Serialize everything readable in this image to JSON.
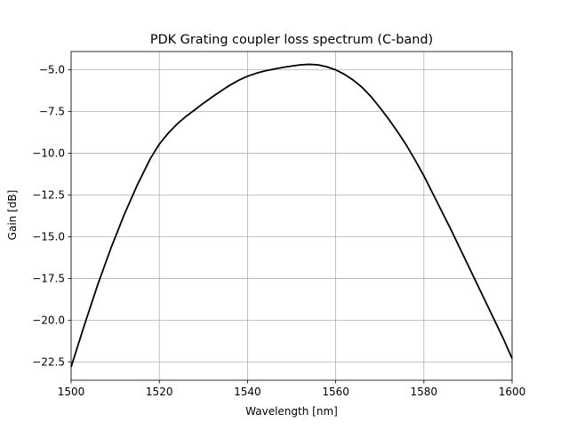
{
  "chart_data": {
    "type": "line",
    "title": "PDK Grating coupler loss spectrum (C-band)",
    "xlabel": "Wavelength [nm]",
    "ylabel": "Gain [dB]",
    "xlim": [
      1500,
      1600
    ],
    "ylim": [
      -23.6,
      -3.9
    ],
    "grid": true,
    "line_color": "#000000",
    "grid_color": "#b0b0b0",
    "xticks": [
      1500,
      1520,
      1540,
      1560,
      1580,
      1600
    ],
    "xtick_labels": [
      "1500",
      "1520",
      "1540",
      "1560",
      "1580",
      "1600"
    ],
    "yticks": [
      -22.5,
      -20.0,
      -17.5,
      -15.0,
      -12.5,
      -10.0,
      -7.5,
      -5.0
    ],
    "ytick_labels": [
      "−22.5",
      "−20.0",
      "−17.5",
      "−15.0",
      "−12.5",
      "−10.0",
      "−7.5",
      "−5.0"
    ],
    "series": [
      {
        "x": [
          1500,
          1503,
          1506,
          1509,
          1512,
          1515,
          1518,
          1520,
          1522,
          1524,
          1526,
          1528,
          1530,
          1532,
          1534,
          1536,
          1538,
          1540,
          1542,
          1544,
          1546,
          1548,
          1550,
          1552,
          1554,
          1556,
          1558,
          1560,
          1562,
          1564,
          1566,
          1568,
          1570,
          1572,
          1574,
          1576,
          1578,
          1580,
          1582,
          1584,
          1586,
          1588,
          1590,
          1592,
          1594,
          1596,
          1598,
          1600
        ],
        "y": [
          -22.8,
          -20.3,
          -17.9,
          -15.7,
          -13.7,
          -11.9,
          -10.3,
          -9.45,
          -8.8,
          -8.25,
          -7.8,
          -7.4,
          -7.0,
          -6.62,
          -6.26,
          -5.92,
          -5.62,
          -5.38,
          -5.2,
          -5.06,
          -4.95,
          -4.85,
          -4.77,
          -4.7,
          -4.67,
          -4.7,
          -4.82,
          -5.0,
          -5.27,
          -5.62,
          -6.05,
          -6.6,
          -7.25,
          -7.95,
          -8.7,
          -9.5,
          -10.4,
          -11.35,
          -12.4,
          -13.45,
          -14.5,
          -15.6,
          -16.7,
          -17.8,
          -18.9,
          -20.0,
          -21.1,
          -22.3
        ]
      }
    ]
  }
}
